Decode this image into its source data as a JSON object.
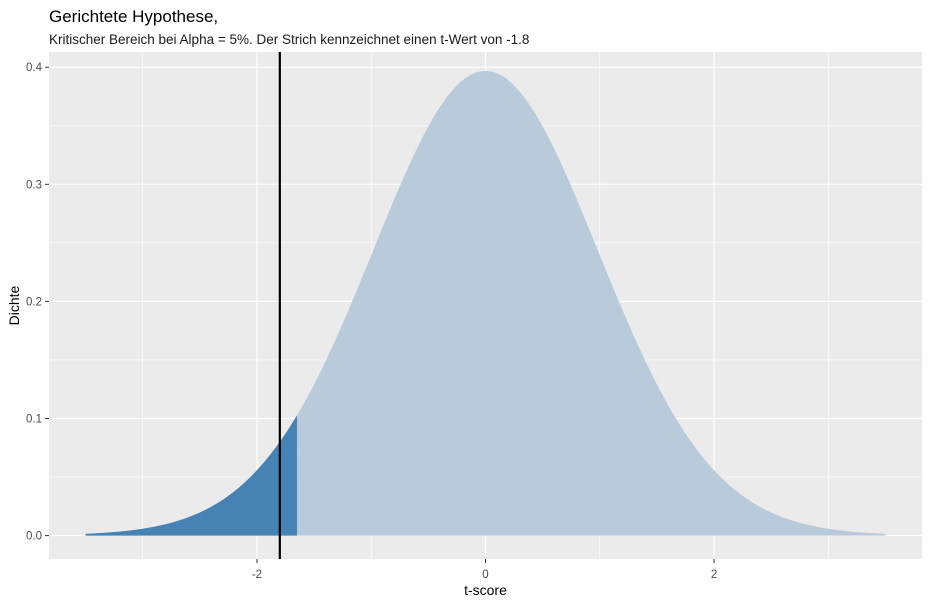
{
  "chart_data": {
    "type": "area",
    "title": "Gerichtete Hypothese,",
    "subtitle": "Kritischer Bereich bei Alpha = 5%. Der Strich kennzeichnet einen t-Wert von -1.8",
    "xlabel": "t-score",
    "ylabel": "Dichte",
    "xlim": [
      -3.82,
      3.82
    ],
    "ylim": [
      -0.02,
      0.413
    ],
    "x_ticks": [
      -2,
      0,
      2
    ],
    "x_tick_labels": [
      "-2",
      "0",
      "2"
    ],
    "y_ticks": [
      0.0,
      0.1,
      0.2,
      0.3,
      0.4
    ],
    "y_tick_labels": [
      "0.0",
      "0.1",
      "0.2",
      "0.3",
      "0.4"
    ],
    "grid": true,
    "distribution": "t",
    "degrees_of_freedom": 49,
    "curve_x_range": [
      -3.5,
      3.5
    ],
    "critical_value": -1.65,
    "marked_t_value": -1.8,
    "colors": {
      "panel_background": "#ebebeb",
      "grid": "#ffffff",
      "density_fill": "#b9cbdb",
      "critical_region_fill": "#4682b4",
      "marker_line": "#000000"
    }
  }
}
